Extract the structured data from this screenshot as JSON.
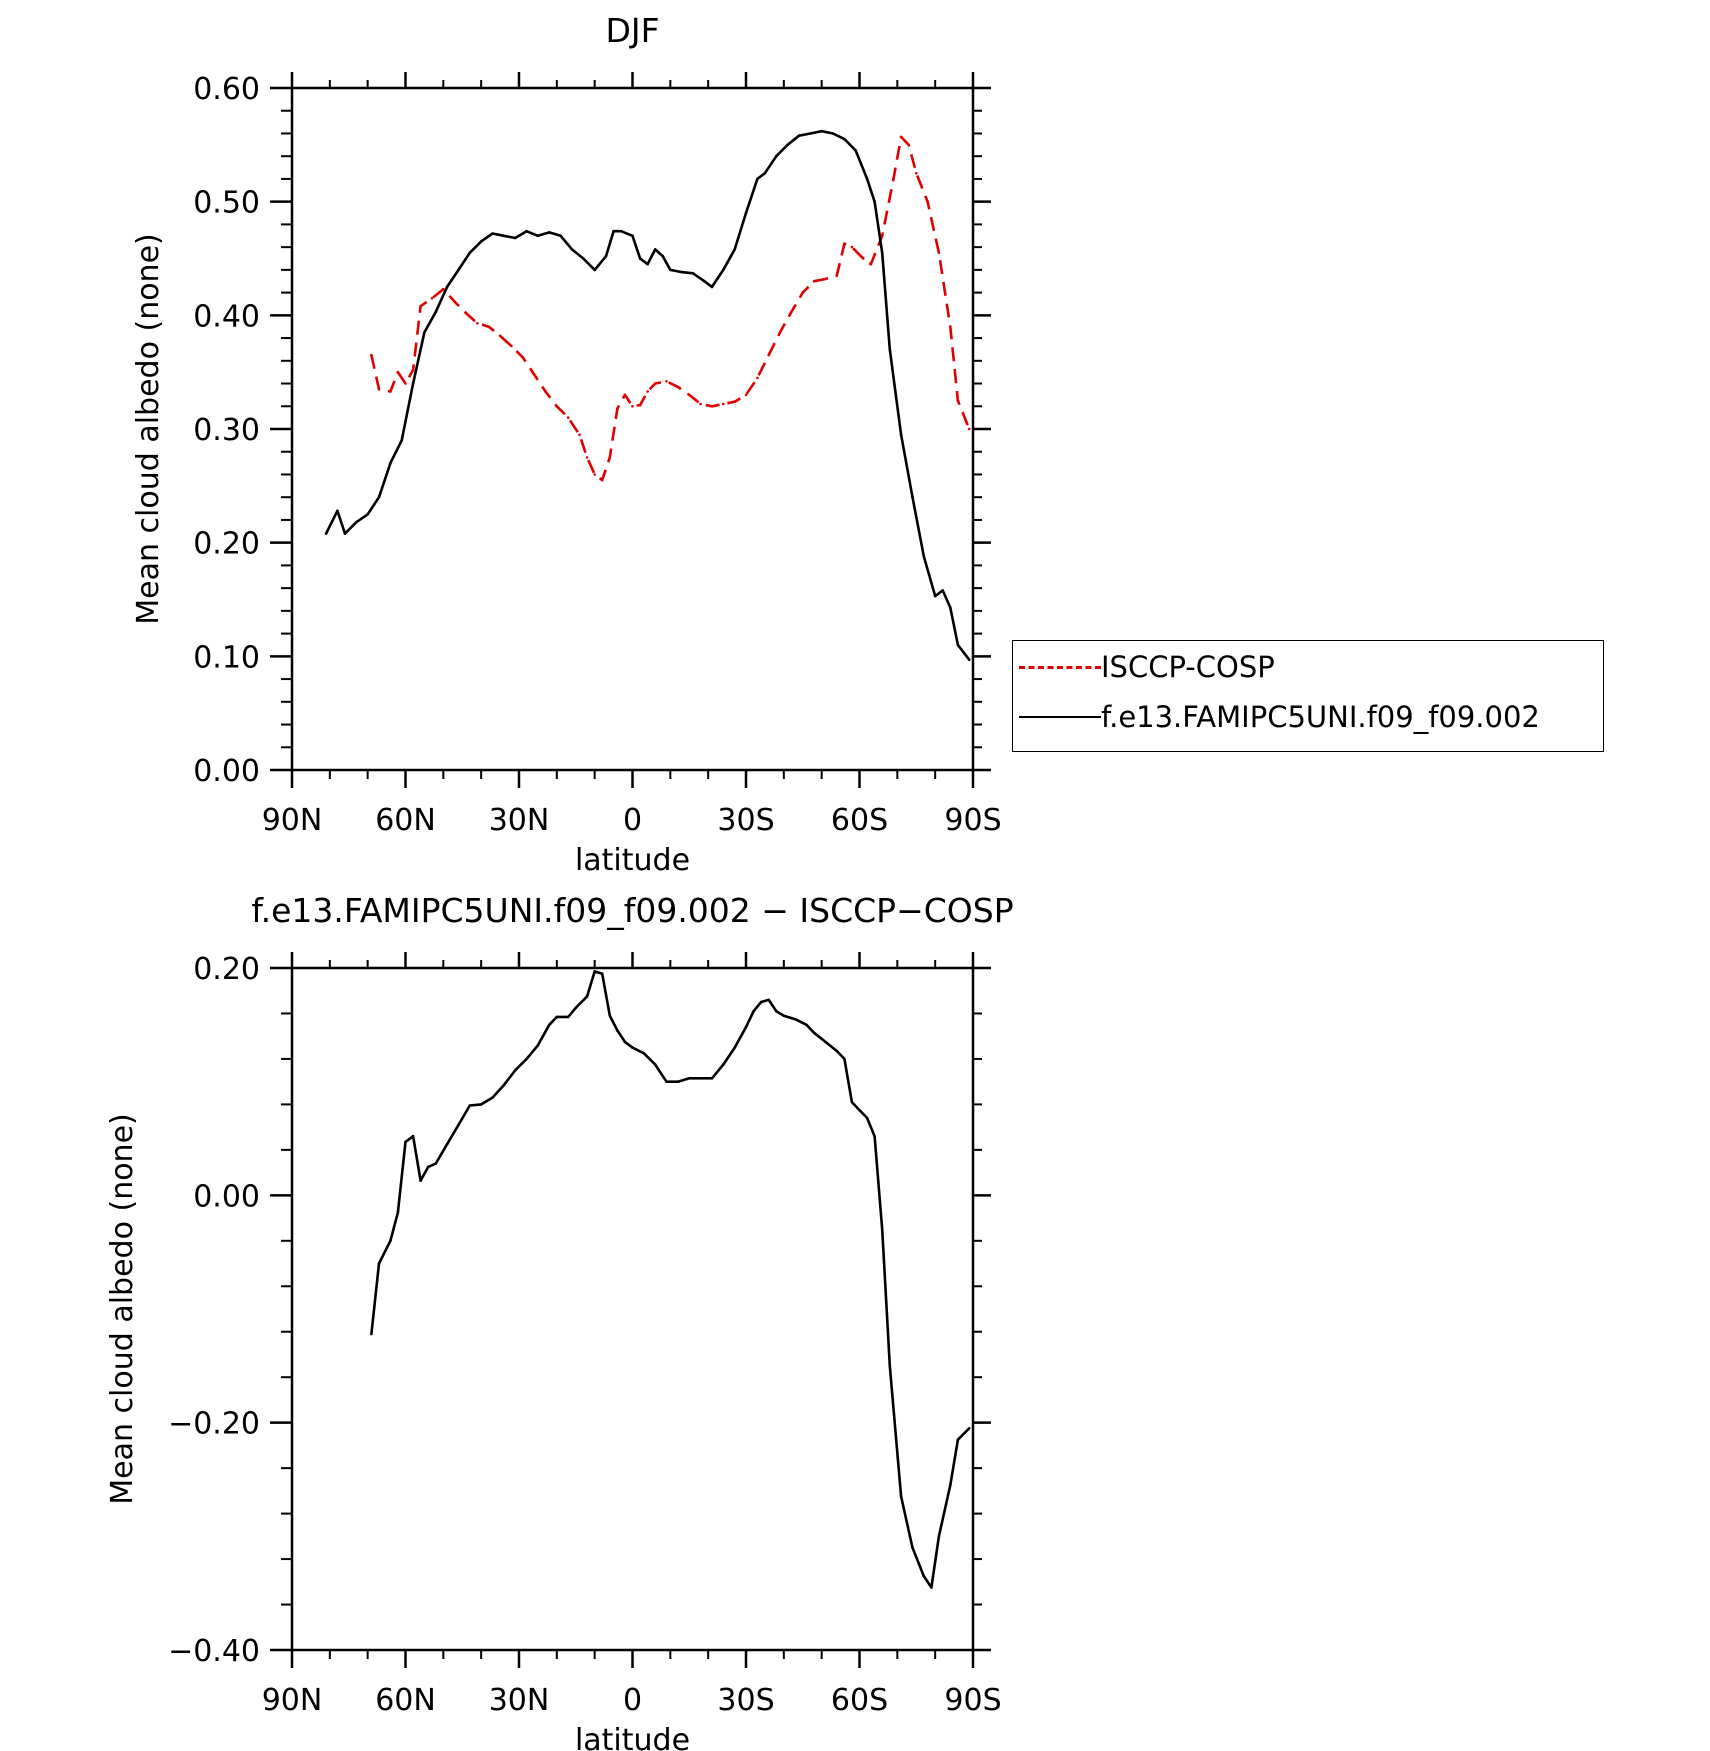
{
  "chart_data": [
    {
      "type": "line",
      "title": "DJF",
      "xlabel": "latitude",
      "ylabel": "Mean cloud albedo (none)",
      "xlim": [
        90,
        -90
      ],
      "ylim": [
        0.0,
        0.6
      ],
      "x_ticks": [
        90,
        60,
        30,
        0,
        -30,
        -60,
        -90
      ],
      "x_tick_labels": [
        "90N",
        "60N",
        "30N",
        "0",
        "30S",
        "60S",
        "90S"
      ],
      "y_ticks": [
        0.0,
        0.1,
        0.2,
        0.3,
        0.4,
        0.5,
        0.6
      ],
      "y_tick_labels": [
        "0.00",
        "0.10",
        "0.20",
        "0.30",
        "0.40",
        "0.50",
        "0.60"
      ],
      "grid": false,
      "legend_position": "right",
      "series": [
        {
          "name": "ISCCP-COSP",
          "color": "#e00000",
          "dash": "dashed",
          "points": [
            [
              69,
              0.365
            ],
            [
              67,
              0.335
            ],
            [
              64,
              0.333
            ],
            [
              62,
              0.35
            ],
            [
              60,
              0.34
            ],
            [
              58,
              0.352
            ],
            [
              56,
              0.408
            ],
            [
              53,
              0.415
            ],
            [
              50,
              0.423
            ],
            [
              47,
              0.412
            ],
            [
              44,
              0.402
            ],
            [
              41,
              0.393
            ],
            [
              38,
              0.39
            ],
            [
              35,
              0.382
            ],
            [
              32,
              0.373
            ],
            [
              29,
              0.363
            ],
            [
              26,
              0.348
            ],
            [
              23,
              0.333
            ],
            [
              20,
              0.32
            ],
            [
              17,
              0.31
            ],
            [
              14,
              0.295
            ],
            [
              12,
              0.275
            ],
            [
              10,
              0.26
            ],
            [
              8,
              0.255
            ],
            [
              6,
              0.275
            ],
            [
              4,
              0.318
            ],
            [
              2,
              0.33
            ],
            [
              0,
              0.32
            ],
            [
              -2,
              0.321
            ],
            [
              -4,
              0.333
            ],
            [
              -6,
              0.34
            ],
            [
              -9,
              0.342
            ],
            [
              -12,
              0.337
            ],
            [
              -15,
              0.33
            ],
            [
              -18,
              0.322
            ],
            [
              -21,
              0.32
            ],
            [
              -24,
              0.322
            ],
            [
              -27,
              0.324
            ],
            [
              -30,
              0.33
            ],
            [
              -33,
              0.345
            ],
            [
              -36,
              0.365
            ],
            [
              -39,
              0.385
            ],
            [
              -42,
              0.403
            ],
            [
              -45,
              0.42
            ],
            [
              -48,
              0.43
            ],
            [
              -51,
              0.432
            ],
            [
              -54,
              0.435
            ],
            [
              -56,
              0.463
            ],
            [
              -58,
              0.46
            ],
            [
              -61,
              0.45
            ],
            [
              -63,
              0.445
            ],
            [
              -66,
              0.47
            ],
            [
              -69,
              0.52
            ],
            [
              -71,
              0.557
            ],
            [
              -73,
              0.55
            ],
            [
              -75,
              0.525
            ],
            [
              -78,
              0.5
            ],
            [
              -81,
              0.455
            ],
            [
              -84,
              0.39
            ],
            [
              -86,
              0.325
            ],
            [
              -89,
              0.3
            ]
          ]
        },
        {
          "name": "f.e13.FAMIPC5UNI.f09_f09.002",
          "color": "#000000",
          "dash": "solid",
          "points": [
            [
              81,
              0.208
            ],
            [
              78,
              0.228
            ],
            [
              76,
              0.208
            ],
            [
              73,
              0.218
            ],
            [
              70,
              0.225
            ],
            [
              67,
              0.24
            ],
            [
              64,
              0.27
            ],
            [
              61,
              0.29
            ],
            [
              58,
              0.34
            ],
            [
              55,
              0.385
            ],
            [
              52,
              0.403
            ],
            [
              49,
              0.425
            ],
            [
              46,
              0.44
            ],
            [
              43,
              0.455
            ],
            [
              40,
              0.465
            ],
            [
              37,
              0.472
            ],
            [
              34,
              0.47
            ],
            [
              31,
              0.468
            ],
            [
              28,
              0.474
            ],
            [
              25,
              0.47
            ],
            [
              22,
              0.473
            ],
            [
              19,
              0.47
            ],
            [
              16,
              0.458
            ],
            [
              13,
              0.45
            ],
            [
              10,
              0.44
            ],
            [
              7,
              0.452
            ],
            [
              5,
              0.474
            ],
            [
              3,
              0.474
            ],
            [
              0,
              0.47
            ],
            [
              -2,
              0.45
            ],
            [
              -4,
              0.445
            ],
            [
              -6,
              0.458
            ],
            [
              -8,
              0.452
            ],
            [
              -10,
              0.44
            ],
            [
              -13,
              0.438
            ],
            [
              -16,
              0.437
            ],
            [
              -19,
              0.43
            ],
            [
              -21,
              0.425
            ],
            [
              -24,
              0.44
            ],
            [
              -27,
              0.458
            ],
            [
              -30,
              0.49
            ],
            [
              -33,
              0.52
            ],
            [
              -35,
              0.525
            ],
            [
              -38,
              0.54
            ],
            [
              -41,
              0.55
            ],
            [
              -44,
              0.558
            ],
            [
              -47,
              0.56
            ],
            [
              -50,
              0.562
            ],
            [
              -53,
              0.56
            ],
            [
              -56,
              0.555
            ],
            [
              -59,
              0.545
            ],
            [
              -62,
              0.52
            ],
            [
              -64,
              0.5
            ],
            [
              -66,
              0.455
            ],
            [
              -68,
              0.37
            ],
            [
              -71,
              0.295
            ],
            [
              -74,
              0.24
            ],
            [
              -77,
              0.188
            ],
            [
              -80,
              0.153
            ],
            [
              -82,
              0.158
            ],
            [
              -84,
              0.143
            ],
            [
              -86,
              0.11
            ],
            [
              -89,
              0.097
            ]
          ]
        }
      ]
    },
    {
      "type": "line",
      "title": "f.e13.FAMIPC5UNI.f09_f09.002 − ISCCP−COSP",
      "xlabel": "latitude",
      "ylabel": "Mean cloud albedo (none)",
      "xlim": [
        90,
        -90
      ],
      "ylim": [
        -0.4,
        0.2
      ],
      "x_ticks": [
        90,
        60,
        30,
        0,
        -30,
        -60,
        -90
      ],
      "x_tick_labels": [
        "90N",
        "60N",
        "30N",
        "0",
        "30S",
        "60S",
        "90S"
      ],
      "y_ticks": [
        -0.4,
        -0.2,
        0.0,
        0.2
      ],
      "y_tick_labels": [
        "−0.40",
        "−0.20",
        "0.00",
        "0.20"
      ],
      "grid": false,
      "series": [
        {
          "color": "#000000",
          "dash": "solid",
          "points": [
            [
              69,
              -0.122
            ],
            [
              67,
              -0.06
            ],
            [
              64,
              -0.04
            ],
            [
              62,
              -0.015
            ],
            [
              60,
              0.047
            ],
            [
              58,
              0.052
            ],
            [
              56,
              0.013
            ],
            [
              54,
              0.025
            ],
            [
              52,
              0.028
            ],
            [
              49,
              0.045
            ],
            [
              46,
              0.062
            ],
            [
              43,
              0.079
            ],
            [
              40,
              0.08
            ],
            [
              37,
              0.086
            ],
            [
              34,
              0.097
            ],
            [
              31,
              0.11
            ],
            [
              28,
              0.12
            ],
            [
              25,
              0.132
            ],
            [
              22,
              0.15
            ],
            [
              20,
              0.157
            ],
            [
              17,
              0.157
            ],
            [
              15,
              0.165
            ],
            [
              12,
              0.175
            ],
            [
              10,
              0.197
            ],
            [
              8,
              0.195
            ],
            [
              6,
              0.158
            ],
            [
              4,
              0.145
            ],
            [
              2,
              0.135
            ],
            [
              0,
              0.13
            ],
            [
              -3,
              0.125
            ],
            [
              -6,
              0.115
            ],
            [
              -9,
              0.1
            ],
            [
              -12,
              0.1
            ],
            [
              -15,
              0.103
            ],
            [
              -18,
              0.103
            ],
            [
              -21,
              0.103
            ],
            [
              -24,
              0.115
            ],
            [
              -27,
              0.13
            ],
            [
              -30,
              0.148
            ],
            [
              -32,
              0.162
            ],
            [
              -34,
              0.17
            ],
            [
              -36,
              0.172
            ],
            [
              -38,
              0.162
            ],
            [
              -40,
              0.158
            ],
            [
              -43,
              0.155
            ],
            [
              -46,
              0.15
            ],
            [
              -48,
              0.143
            ],
            [
              -51,
              0.135
            ],
            [
              -54,
              0.127
            ],
            [
              -56,
              0.12
            ],
            [
              -58,
              0.082
            ],
            [
              -60,
              0.075
            ],
            [
              -62,
              0.068
            ],
            [
              -64,
              0.052
            ],
            [
              -66,
              -0.03
            ],
            [
              -68,
              -0.15
            ],
            [
              -71,
              -0.265
            ],
            [
              -74,
              -0.31
            ],
            [
              -77,
              -0.335
            ],
            [
              -79,
              -0.345
            ],
            [
              -81,
              -0.3
            ],
            [
              -84,
              -0.255
            ],
            [
              -86,
              -0.215
            ],
            [
              -89,
              -0.205
            ]
          ]
        }
      ]
    }
  ]
}
